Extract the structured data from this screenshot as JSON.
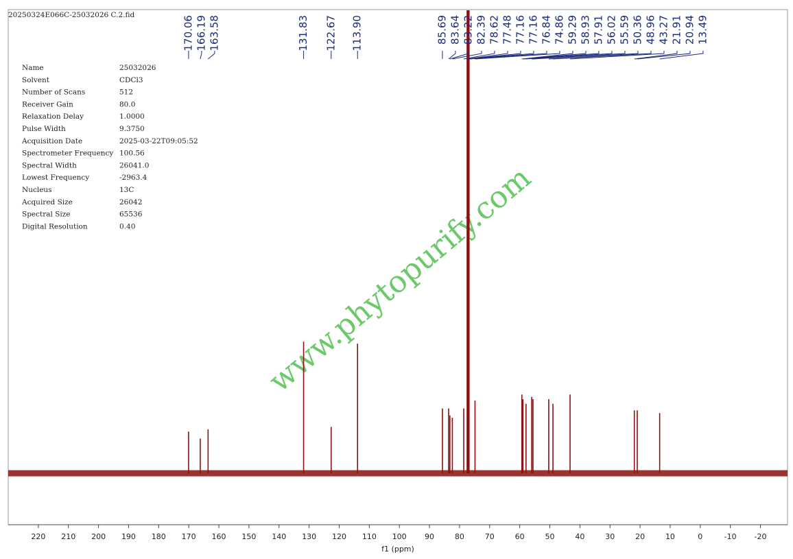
{
  "chart_data": {
    "type": "spectrum",
    "title": "20250324E066C-25032026 C.2.fid",
    "xlabel": "f1 (ppm)",
    "watermark": "www.phytopurify.com",
    "color": "#8b1010",
    "label_color": "#1c2a7a",
    "watermark_color": "#5cc45c",
    "xlim": [
      230,
      -29
    ],
    "ylim": [
      0,
      100
    ],
    "xticks": [
      220,
      210,
      200,
      190,
      180,
      170,
      160,
      150,
      140,
      130,
      120,
      110,
      100,
      90,
      80,
      70,
      60,
      50,
      40,
      30,
      20,
      10,
      0,
      -10,
      -20
    ],
    "peaks": [
      170.06,
      166.19,
      163.58,
      131.83,
      122.67,
      113.9,
      85.69,
      83.64,
      83.22,
      82.39,
      78.62,
      77.48,
      77.16,
      77.16,
      76.84,
      74.86,
      59.29,
      58.93,
      57.91,
      56.02,
      55.59,
      50.36,
      48.96,
      43.27,
      21.91,
      20.94,
      13.49
    ],
    "peak_labels": [
      "170.06",
      "166.19",
      "163.58",
      "131.83",
      "122.67",
      "113.90",
      "85.69",
      "83.64",
      "83.22",
      "82.39",
      "78.62",
      "77.48",
      "77.16",
      "77.16",
      "76.84",
      "74.86",
      "59.29",
      "58.93",
      "57.91",
      "56.02",
      "55.59",
      "50.36",
      "48.96",
      "43.27",
      "21.91",
      "20.94",
      "13.49"
    ],
    "intensities": [
      9,
      7.5,
      9.5,
      28.4,
      10,
      28,
      14,
      14,
      12.5,
      12,
      14,
      100,
      100,
      100,
      100,
      15.7,
      17,
      16,
      15,
      16.5,
      16,
      16,
      15,
      17,
      13.6,
      13.6,
      13
    ],
    "parameters": [
      {
        "name": "Name",
        "value": "25032026"
      },
      {
        "name": "Solvent",
        "value": "CDCl3"
      },
      {
        "name": "Number of Scans",
        "value": "512"
      },
      {
        "name": "Receiver Gain",
        "value": "80.0"
      },
      {
        "name": "Relaxation Delay",
        "value": "1.0000"
      },
      {
        "name": "Pulse Width",
        "value": "9.3750"
      },
      {
        "name": "Acquisition Date",
        "value": "2025-03-22T09:05:52"
      },
      {
        "name": "Spectrometer Frequency",
        "value": "100.56"
      },
      {
        "name": "Spectral Width",
        "value": "26041.0"
      },
      {
        "name": "Lowest Frequency",
        "value": "-2963.4"
      },
      {
        "name": "Nucleus",
        "value": "13C"
      },
      {
        "name": "Acquired Size",
        "value": "26042"
      },
      {
        "name": "Spectral Size",
        "value": "65536"
      },
      {
        "name": "Digital Resolution",
        "value": "0.40"
      }
    ]
  }
}
